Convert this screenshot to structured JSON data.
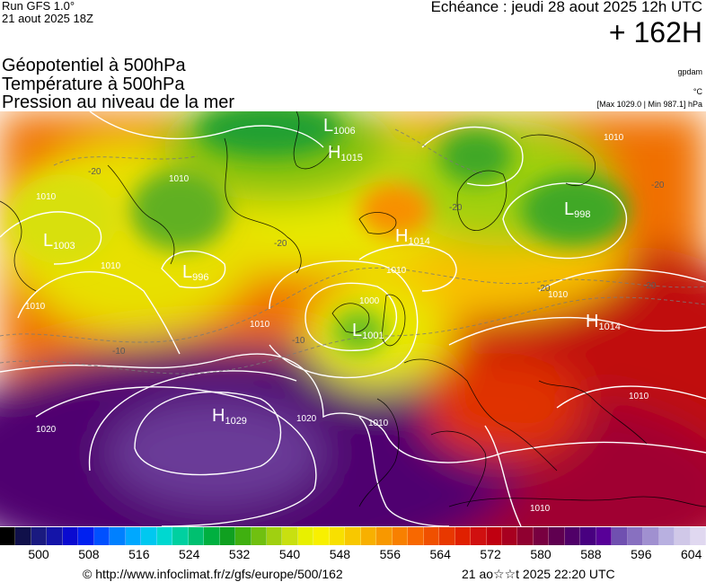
{
  "header": {
    "run": "Run GFS 1.0°",
    "run_date": "21 aout 2025 18Z",
    "echeance": "Echéance : jeudi 28 aout 2025 12h UTC",
    "lead_time": "+ 162H"
  },
  "fields": [
    "Géopotentiel à 500hPa",
    "Température à 500hPa",
    "Pression au niveau de la mer"
  ],
  "units": {
    "geopotential": "gpdam",
    "temperature": "°C",
    "pressure_range": "[Max 1029.0 | Min 987.1] hPa"
  },
  "map": {
    "pressure_systems": [
      {
        "type": "L",
        "value": "1006"
      },
      {
        "type": "H",
        "value": "1015"
      },
      {
        "type": "H",
        "value": "1014"
      },
      {
        "type": "L",
        "value": "1003"
      },
      {
        "type": "L",
        "value": "996"
      },
      {
        "type": "L",
        "value": "998"
      },
      {
        "type": "L",
        "value": "1001"
      },
      {
        "type": "H",
        "value": "1014"
      },
      {
        "type": "H",
        "value": "1029"
      }
    ],
    "isobar_labels": [
      "1010",
      "1010",
      "1010",
      "1010",
      "1010",
      "1010",
      "1010",
      "1020",
      "1020",
      "1000",
      "1010",
      "1010",
      "1010",
      "1010"
    ],
    "isotherm_labels": [
      "-20",
      "-20",
      "-20",
      "-20",
      "-10",
      "-10",
      "-20",
      "-20"
    ]
  },
  "colorbar": {
    "tick_labels": [
      "500",
      "508",
      "516",
      "524",
      "532",
      "540",
      "548",
      "556",
      "564",
      "572",
      "580",
      "588",
      "596",
      "604"
    ],
    "colors": [
      "#000000",
      "#10104a",
      "#1a1a80",
      "#1414a8",
      "#0a0ad0",
      "#0020f0",
      "#0050ff",
      "#0080ff",
      "#00a8ff",
      "#00c8f0",
      "#00d8d0",
      "#00d0a0",
      "#00c070",
      "#00b040",
      "#10a020",
      "#40b010",
      "#70c010",
      "#a0d010",
      "#c8e010",
      "#e8f000",
      "#f8f000",
      "#f8e000",
      "#f8c800",
      "#f8b000",
      "#f89800",
      "#f88000",
      "#f86800",
      "#f05000",
      "#e83800",
      "#e02000",
      "#d01010",
      "#c00010",
      "#a80020",
      "#900030",
      "#780040",
      "#600050",
      "#500068",
      "#480080",
      "#580098",
      "#7050b0",
      "#8870c0",
      "#a090d0",
      "#b8b0e0",
      "#d0c8e8",
      "#e0d8f0"
    ]
  },
  "footer": {
    "credit": "© http://www.infoclimat.fr/z/gfs/europe/500/162",
    "generated": "21 ao☆☆t 2025 22:20 UTC"
  }
}
